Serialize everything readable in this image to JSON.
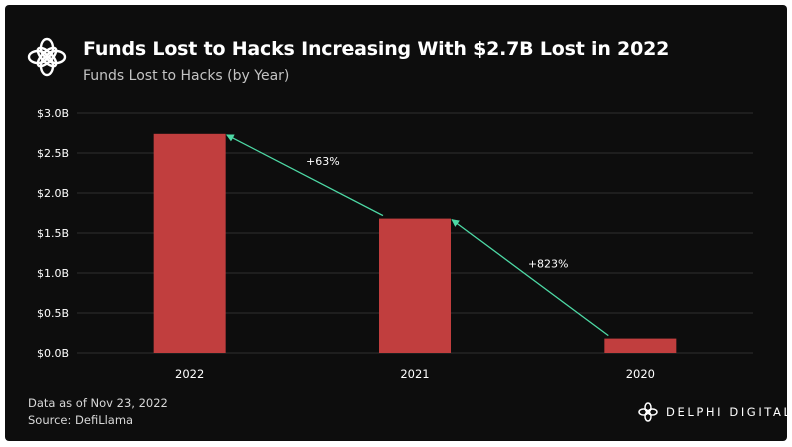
{
  "header": {
    "title": "Funds Lost to Hacks Increasing With $2.7B Lost in 2022",
    "subtitle": "Funds Lost to Hacks (by Year)"
  },
  "footer": {
    "data_as_of": "Data as of Nov 23, 2022",
    "source": "Source: DefiLlama",
    "brand": "DELPHI DIGITAL"
  },
  "logo": {
    "icon": "delphi-flower-logo-icon"
  },
  "colors": {
    "background": "#0d0d0d",
    "bar": "#c13e3e",
    "arrow": "#4dd9a5",
    "grid": "#2f2f2f",
    "text": "#ffffff"
  },
  "chart_data": {
    "type": "bar",
    "categories": [
      "2022",
      "2021",
      "2020"
    ],
    "values": [
      2.74,
      1.68,
      0.18
    ],
    "ylim": [
      0,
      3.0
    ],
    "yticks": [
      0,
      0.5,
      1.0,
      1.5,
      2.0,
      2.5,
      3.0
    ],
    "ytick_labels": [
      "$0.0B",
      "$0.5B",
      "$1.0B",
      "$1.5B",
      "$2.0B",
      "$2.5B",
      "$3.0B"
    ],
    "grid": true,
    "annotations": [
      {
        "from": "2021",
        "to": "2022",
        "label": "+63%"
      },
      {
        "from": "2020",
        "to": "2021",
        "label": "+823%"
      }
    ]
  }
}
